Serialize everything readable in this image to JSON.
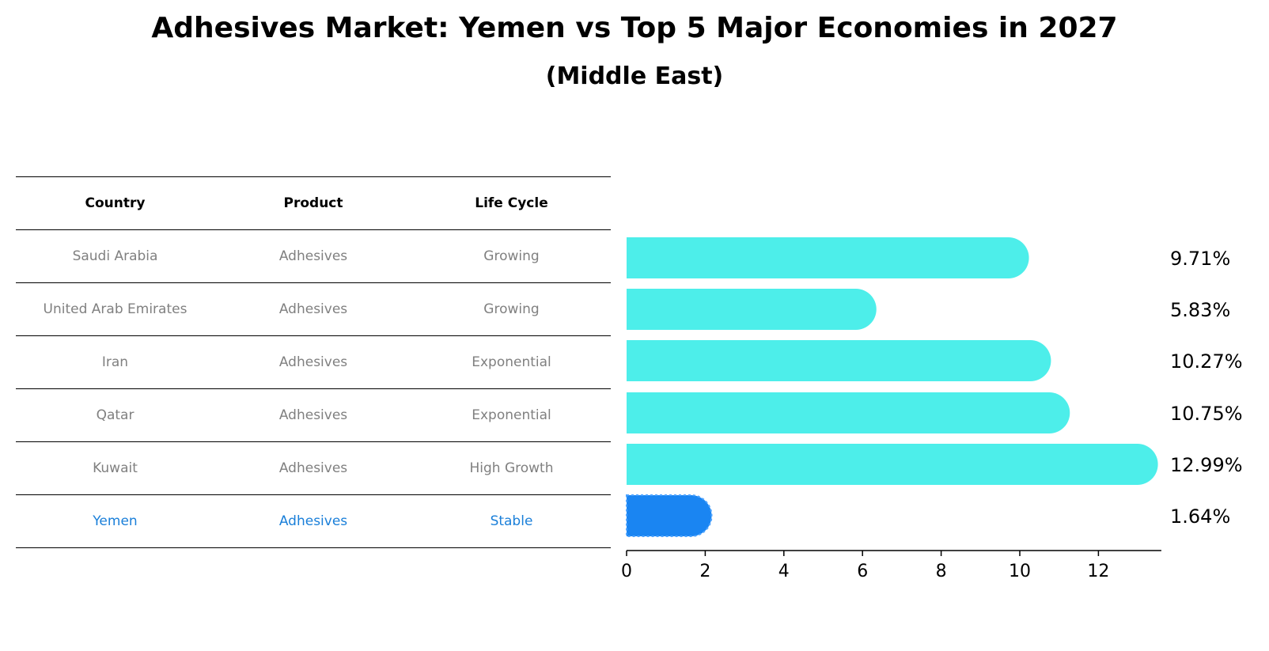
{
  "colors": {
    "bar": "#4DEEEA",
    "highlight_bar": "#1A85F2",
    "highlight_text": "#1A7FD9",
    "muted_text": "#808080"
  },
  "table": {
    "headers": [
      "Country",
      "Product",
      "Life Cycle"
    ],
    "rows": [
      {
        "country": "Saudi Arabia",
        "product": "Adhesives",
        "life_cycle": "Growing"
      },
      {
        "country": "United Arab Emirates",
        "product": "Adhesives",
        "life_cycle": "Growing"
      },
      {
        "country": "Iran",
        "product": "Adhesives",
        "life_cycle": "Exponential"
      },
      {
        "country": "Qatar",
        "product": "Adhesives",
        "life_cycle": "Exponential"
      },
      {
        "country": "Kuwait",
        "product": "Adhesives",
        "life_cycle": "High Growth"
      },
      {
        "country": "Yemen",
        "product": "Adhesives",
        "life_cycle": "Stable"
      }
    ]
  },
  "chart_data": {
    "type": "bar",
    "orientation": "horizontal",
    "title": "Adhesives Market: Yemen vs Top 5 Major Economies in 2027",
    "subtitle": "(Middle East)",
    "categories": [
      "Saudi Arabia",
      "United Arab Emirates",
      "Iran",
      "Qatar",
      "Kuwait",
      "Yemen"
    ],
    "values": [
      9.71,
      5.83,
      10.27,
      10.75,
      12.99,
      1.64
    ],
    "value_labels": [
      "9.71%",
      "5.83%",
      "10.27%",
      "10.75%",
      "12.99%",
      "1.64%"
    ],
    "highlight": "Yemen",
    "xticks": [
      0,
      2,
      4,
      6,
      8,
      10,
      12
    ],
    "xlim": [
      0,
      13.6
    ],
    "xlabel": "",
    "ylabel": "",
    "grid": false
  }
}
